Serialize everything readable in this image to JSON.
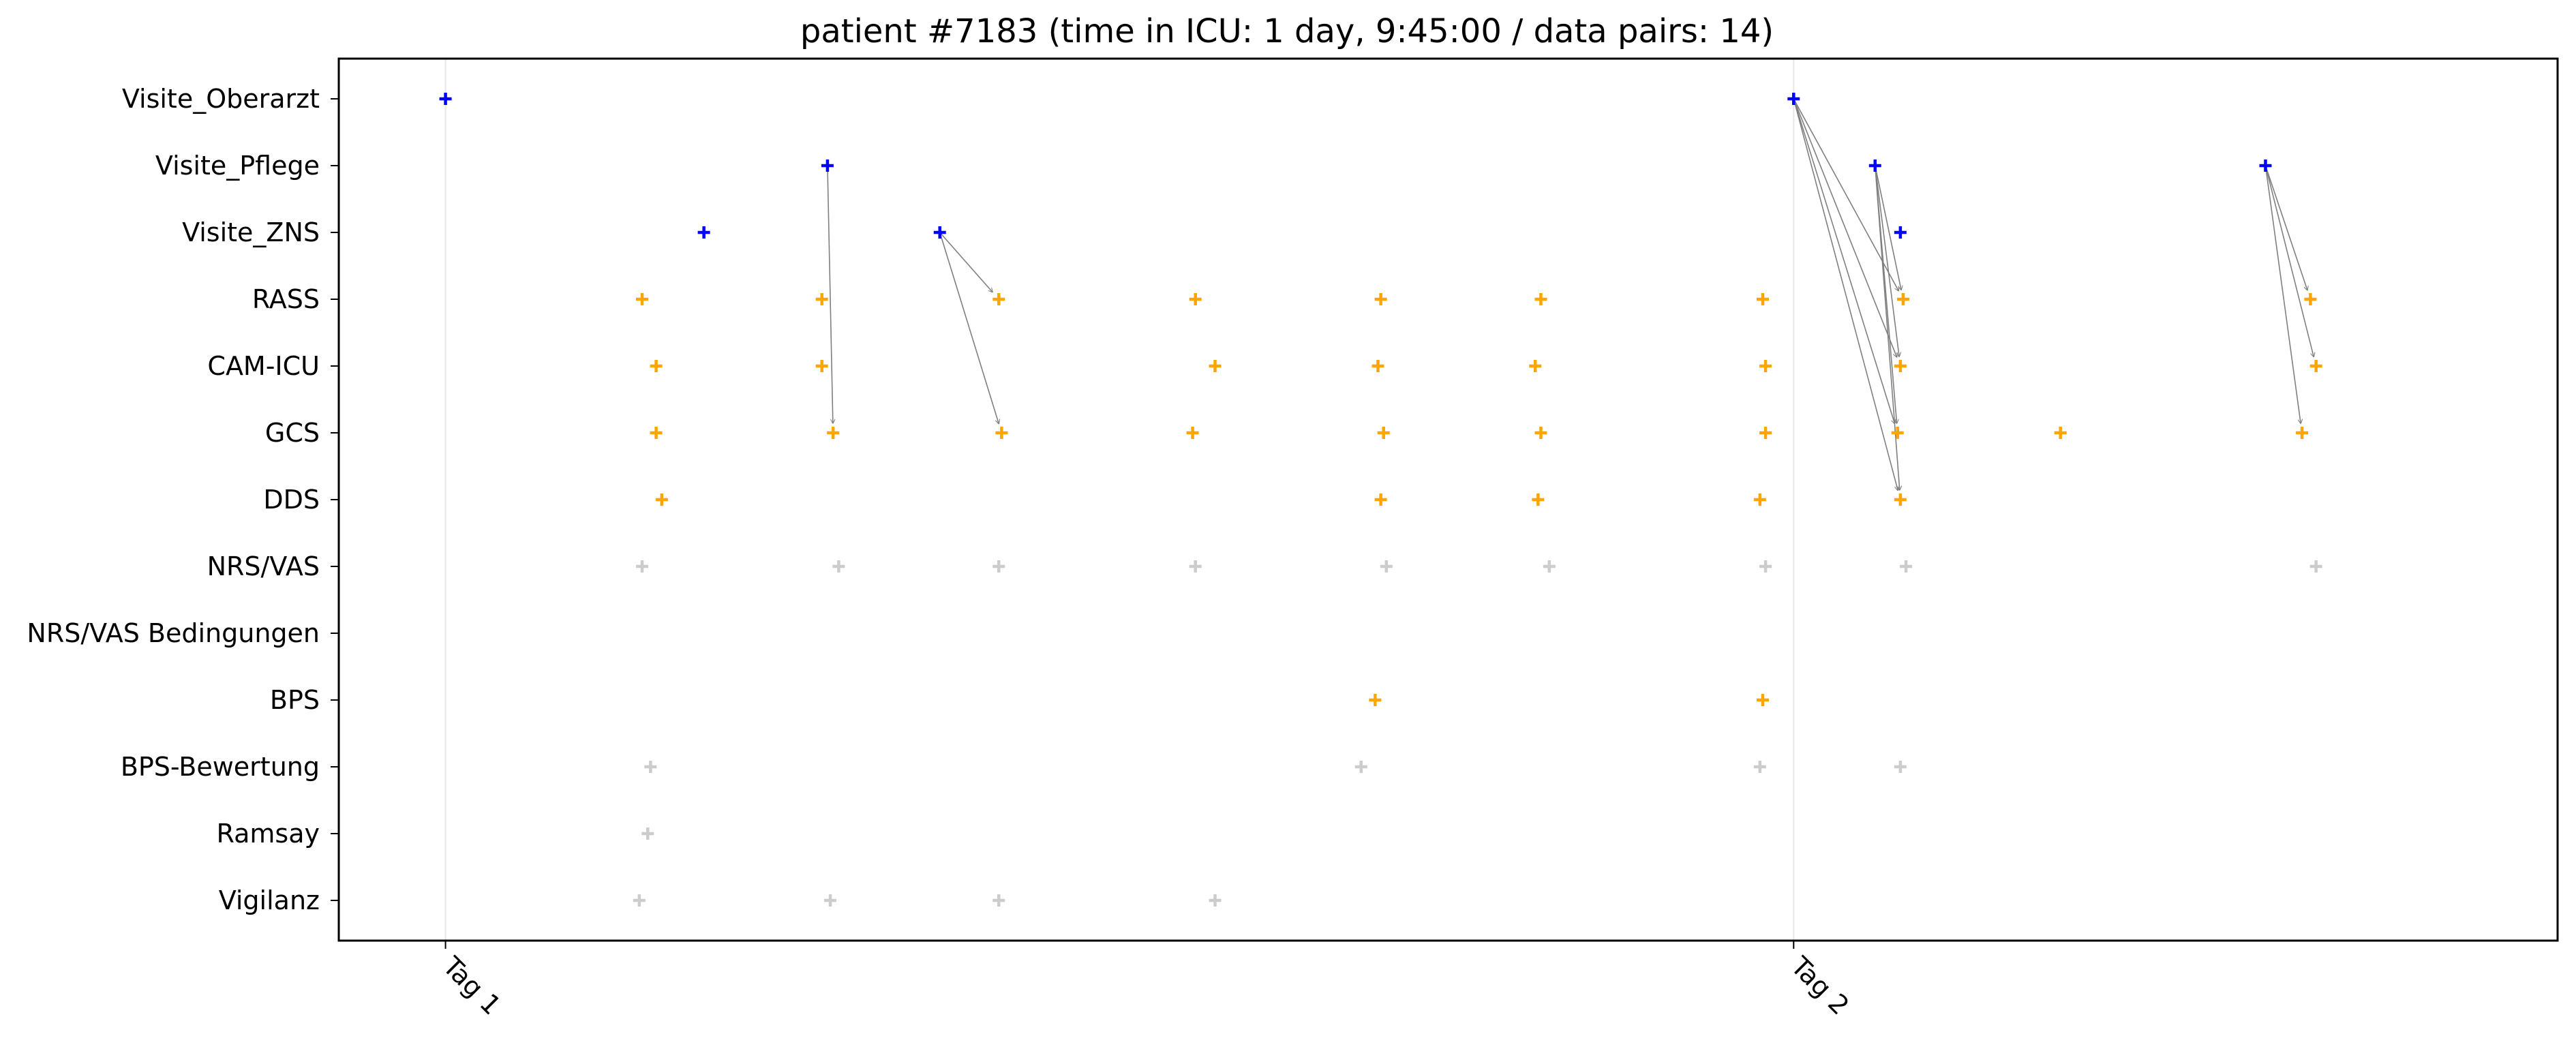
{
  "chart_data": {
    "type": "scatter",
    "title": "patient #7183 (time in ICU: 1 day, 9:45:00 / data pairs: 14)",
    "xlabel": "",
    "ylabel": "",
    "grid": "vertical lines at day ticks",
    "legend": "none",
    "x_unit": "hours since admission",
    "xlim": [
      -1.9,
      37.6
    ],
    "x_ticks": [
      {
        "label": "Tag 1",
        "x": 0
      },
      {
        "label": "Tag 2",
        "x": 24
      }
    ],
    "categories": [
      "Visite_Oberarzt",
      "Visite_Pflege",
      "Visite_ZNS",
      "RASS",
      "CAM-ICU",
      "GCS",
      "DDS",
      "NRS/VAS",
      "NRS/VAS Bedingungen",
      "BPS",
      "BPS-Bewertung",
      "Ramsay",
      "Vigilanz"
    ],
    "colors": {
      "visit": "#0000ff",
      "paired": "#ffa500",
      "other": "#cccccc",
      "arrow": "#808080",
      "grid": "#e6e6e6"
    },
    "series": [
      {
        "category": "Visite_Oberarzt",
        "color_key": "visit",
        "x": [
          0,
          24
        ]
      },
      {
        "category": "Visite_Pflege",
        "color_key": "visit",
        "x": [
          6.8,
          25.45,
          32.4
        ]
      },
      {
        "category": "Visite_ZNS",
        "color_key": "visit",
        "x": [
          4.6,
          8.8,
          25.9
        ]
      },
      {
        "category": "RASS",
        "color_key": "paired",
        "x": [
          3.5,
          6.7,
          9.85,
          13.35,
          16.65,
          19.5,
          23.45,
          25.95,
          33.2
        ]
      },
      {
        "category": "CAM-ICU",
        "color_key": "paired",
        "x": [
          3.75,
          6.7,
          13.7,
          16.6,
          19.4,
          23.5,
          25.9,
          33.3
        ]
      },
      {
        "category": "GCS",
        "color_key": "paired",
        "x": [
          3.75,
          6.9,
          9.9,
          13.3,
          16.7,
          19.5,
          23.5,
          25.85,
          28.75,
          33.05
        ]
      },
      {
        "category": "DDS",
        "color_key": "paired",
        "x": [
          3.85,
          16.65,
          19.45,
          23.4,
          25.9
        ]
      },
      {
        "category": "NRS/VAS",
        "color_key": "other",
        "x": [
          3.5,
          7.0,
          9.85,
          13.35,
          16.75,
          19.65,
          23.5,
          26.0,
          33.3
        ]
      },
      {
        "category": "NRS/VAS Bedingungen",
        "color_key": "other",
        "x": []
      },
      {
        "category": "BPS",
        "color_key": "paired",
        "x": [
          16.55,
          23.45
        ]
      },
      {
        "category": "BPS-Bewertung",
        "color_key": "other",
        "x": [
          3.65,
          16.3,
          23.4,
          25.9
        ]
      },
      {
        "category": "Ramsay",
        "color_key": "other",
        "x": [
          3.6
        ]
      },
      {
        "category": "Vigilanz",
        "color_key": "other",
        "x": [
          3.45,
          6.85,
          9.85,
          13.7
        ]
      }
    ],
    "pairs": [
      {
        "from": [
          6.8,
          "Visite_Pflege"
        ],
        "to": [
          6.9,
          "GCS"
        ]
      },
      {
        "from": [
          8.8,
          "Visite_ZNS"
        ],
        "to": [
          9.85,
          "RASS"
        ]
      },
      {
        "from": [
          8.8,
          "Visite_ZNS"
        ],
        "to": [
          9.9,
          "GCS"
        ]
      },
      {
        "from": [
          24,
          "Visite_Oberarzt"
        ],
        "to": [
          25.95,
          "RASS"
        ]
      },
      {
        "from": [
          24,
          "Visite_Oberarzt"
        ],
        "to": [
          25.9,
          "CAM-ICU"
        ]
      },
      {
        "from": [
          24,
          "Visite_Oberarzt"
        ],
        "to": [
          25.85,
          "GCS"
        ]
      },
      {
        "from": [
          24,
          "Visite_Oberarzt"
        ],
        "to": [
          25.9,
          "DDS"
        ]
      },
      {
        "from": [
          25.45,
          "Visite_Pflege"
        ],
        "to": [
          25.95,
          "RASS"
        ]
      },
      {
        "from": [
          25.45,
          "Visite_Pflege"
        ],
        "to": [
          25.9,
          "CAM-ICU"
        ]
      },
      {
        "from": [
          25.45,
          "Visite_Pflege"
        ],
        "to": [
          25.85,
          "GCS"
        ]
      },
      {
        "from": [
          25.45,
          "Visite_Pflege"
        ],
        "to": [
          25.9,
          "DDS"
        ]
      },
      {
        "from": [
          32.4,
          "Visite_Pflege"
        ],
        "to": [
          33.2,
          "RASS"
        ]
      },
      {
        "from": [
          32.4,
          "Visite_Pflege"
        ],
        "to": [
          33.3,
          "CAM-ICU"
        ]
      },
      {
        "from": [
          32.4,
          "Visite_Pflege"
        ],
        "to": [
          33.05,
          "GCS"
        ]
      }
    ]
  }
}
